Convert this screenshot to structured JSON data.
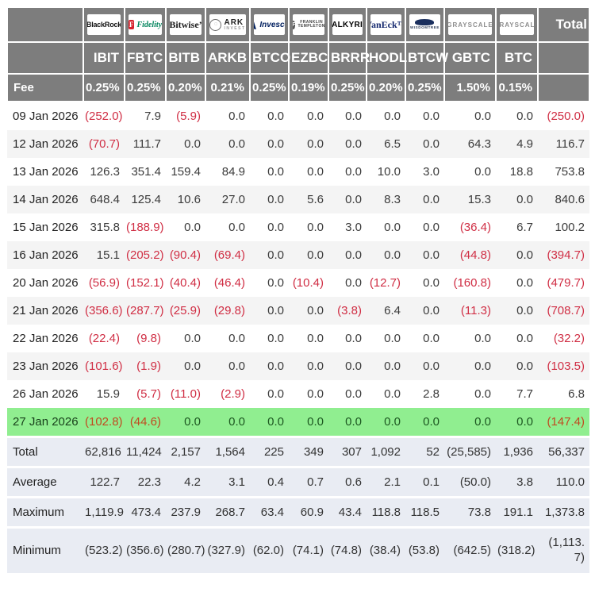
{
  "chart_data": {
    "type": "table",
    "issuer_logos": [
      "BlackRock",
      "Fidelity",
      "Bitwise",
      "ARK Invest",
      "Invesco",
      "Franklin Templeton",
      "Valkyrie",
      "VanEck",
      "WisdomTree",
      "Grayscale",
      "Grayscale"
    ],
    "columns": [
      "IBIT",
      "FBTC",
      "BITB",
      "ARKB",
      "BTCO",
      "EZBC",
      "BRRR",
      "HODL",
      "BTCW",
      "GBTC",
      "BTC"
    ],
    "total_column_label": "Total",
    "fee_row": {
      "label": "Fee",
      "values": [
        "0.25%",
        "0.25%",
        "0.20%",
        "0.21%",
        "0.25%",
        "0.19%",
        "0.25%",
        "0.20%",
        "0.25%",
        "1.50%",
        "0.15%"
      ]
    },
    "rows": [
      {
        "date": "09 Jan 2026",
        "values": [
          "(252.0)",
          "7.9",
          "(5.9)",
          "0.0",
          "0.0",
          "0.0",
          "0.0",
          "0.0",
          "0.0",
          "0.0",
          "0.0"
        ],
        "total": "(250.0)",
        "highlight": false
      },
      {
        "date": "12 Jan 2026",
        "values": [
          "(70.7)",
          "111.7",
          "0.0",
          "0.0",
          "0.0",
          "0.0",
          "0.0",
          "6.5",
          "0.0",
          "64.3",
          "4.9"
        ],
        "total": "116.7",
        "highlight": false
      },
      {
        "date": "13 Jan 2026",
        "values": [
          "126.3",
          "351.4",
          "159.4",
          "84.9",
          "0.0",
          "0.0",
          "0.0",
          "10.0",
          "3.0",
          "0.0",
          "18.8"
        ],
        "total": "753.8",
        "highlight": false
      },
      {
        "date": "14 Jan 2026",
        "values": [
          "648.4",
          "125.4",
          "10.6",
          "27.0",
          "0.0",
          "5.6",
          "0.0",
          "8.3",
          "0.0",
          "15.3",
          "0.0"
        ],
        "total": "840.6",
        "highlight": false
      },
      {
        "date": "15 Jan 2026",
        "values": [
          "315.8",
          "(188.9)",
          "0.0",
          "0.0",
          "0.0",
          "0.0",
          "3.0",
          "0.0",
          "0.0",
          "(36.4)",
          "6.7"
        ],
        "total": "100.2",
        "highlight": false
      },
      {
        "date": "16 Jan 2026",
        "values": [
          "15.1",
          "(205.2)",
          "(90.4)",
          "(69.4)",
          "0.0",
          "0.0",
          "0.0",
          "0.0",
          "0.0",
          "(44.8)",
          "0.0"
        ],
        "total": "(394.7)",
        "highlight": false
      },
      {
        "date": "20 Jan 2026",
        "values": [
          "(56.9)",
          "(152.1)",
          "(40.4)",
          "(46.4)",
          "0.0",
          "(10.4)",
          "0.0",
          "(12.7)",
          "0.0",
          "(160.8)",
          "0.0"
        ],
        "total": "(479.7)",
        "highlight": false
      },
      {
        "date": "21 Jan 2026",
        "values": [
          "(356.6)",
          "(287.7)",
          "(25.9)",
          "(29.8)",
          "0.0",
          "0.0",
          "(3.8)",
          "6.4",
          "0.0",
          "(11.3)",
          "0.0"
        ],
        "total": "(708.7)",
        "highlight": false
      },
      {
        "date": "22 Jan 2026",
        "values": [
          "(22.4)",
          "(9.8)",
          "0.0",
          "0.0",
          "0.0",
          "0.0",
          "0.0",
          "0.0",
          "0.0",
          "0.0",
          "0.0"
        ],
        "total": "(32.2)",
        "highlight": false
      },
      {
        "date": "23 Jan 2026",
        "values": [
          "(101.6)",
          "(1.9)",
          "0.0",
          "0.0",
          "0.0",
          "0.0",
          "0.0",
          "0.0",
          "0.0",
          "0.0",
          "0.0"
        ],
        "total": "(103.5)",
        "highlight": false
      },
      {
        "date": "26 Jan 2026",
        "values": [
          "15.9",
          "(5.7)",
          "(11.0)",
          "(2.9)",
          "0.0",
          "0.0",
          "0.0",
          "0.0",
          "2.8",
          "0.0",
          "7.7"
        ],
        "total": "6.8",
        "highlight": false
      },
      {
        "date": "27 Jan 2026",
        "values": [
          "(102.8)",
          "(44.6)",
          "0.0",
          "0.0",
          "0.0",
          "0.0",
          "0.0",
          "0.0",
          "0.0",
          "0.0",
          "0.0"
        ],
        "total": "(147.4)",
        "highlight": true
      }
    ],
    "summary_rows": [
      {
        "label": "Total",
        "values": [
          "62,816",
          "11,424",
          "2,157",
          "1,564",
          "225",
          "349",
          "307",
          "1,092",
          "52",
          "(25,585)",
          "1,936"
        ],
        "total": "56,337"
      },
      {
        "label": "Average",
        "values": [
          "122.7",
          "22.3",
          "4.2",
          "3.1",
          "0.4",
          "0.7",
          "0.6",
          "2.1",
          "0.1",
          "(50.0)",
          "3.8"
        ],
        "total": "110.0"
      },
      {
        "label": "Maximum",
        "values": [
          "1,119.9",
          "473.4",
          "237.9",
          "268.7",
          "63.4",
          "60.9",
          "43.4",
          "118.8",
          "118.5",
          "73.8",
          "191.1"
        ],
        "total": "1,373.8"
      },
      {
        "label": "Minimum",
        "values": [
          "(523.2)",
          "(356.6)",
          "(280.7)",
          "(327.9)",
          "(62.0)",
          "(74.1)",
          "(74.8)",
          "(38.4)",
          "(53.8)",
          "(642.5)",
          "(318.2)"
        ],
        "total": "(1,113.7)"
      }
    ],
    "colors": {
      "header_bg": "#7d7d7d",
      "negative_text": "#d02e44",
      "highlight_row_bg": "#90ee90",
      "highlight_text": "#1c5720",
      "summary_bg": "#e9ecf3",
      "stripe_bg": "#f4f4f4"
    }
  }
}
